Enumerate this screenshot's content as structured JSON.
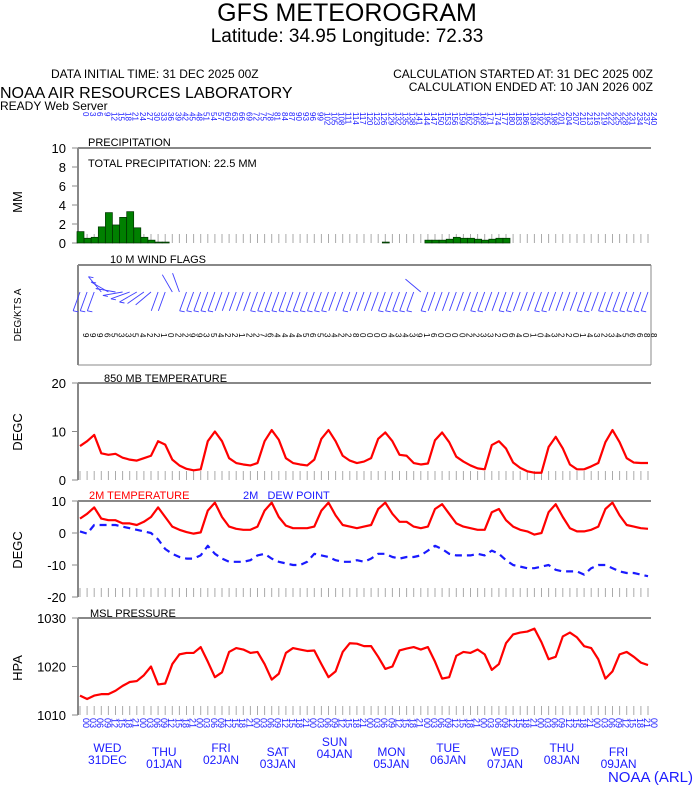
{
  "header": {
    "title": "GFS METEOROGRAM",
    "location": "Latitude: 34.95 Longitude:  72.33",
    "initial_time": "DATA INITIAL TIME: 31 DEC 2025 00Z",
    "calc_started": "CALCULATION STARTED AT: 31 DEC 2025 00Z",
    "calc_ended": "CALCULATION ENDED AT: 10 JAN 2026 00Z",
    "org": "NOAA AIR RESOURCES LABORATORY",
    "server": "READY Web Server",
    "footer": "NOAA (ARL)"
  },
  "colors": {
    "temperature": "#ff0000",
    "dew_point": "#1a1aff",
    "precip": "#008000",
    "axis_labels": "#1a1aff"
  },
  "forecast_hours": [
    0,
    3,
    6,
    9,
    12,
    15,
    18,
    21,
    24,
    27,
    30,
    33,
    36,
    39,
    42,
    45,
    48,
    51,
    54,
    57,
    60,
    63,
    66,
    69,
    72,
    75,
    78,
    81,
    84,
    87,
    90,
    93,
    96,
    99,
    102,
    105,
    108,
    111,
    114,
    117,
    120,
    123,
    126,
    129,
    132,
    135,
    138,
    141,
    144,
    147,
    150,
    153,
    156,
    159,
    162,
    165,
    168,
    171,
    174,
    177,
    180,
    183,
    186,
    189,
    192,
    195,
    198,
    201,
    204,
    207,
    210,
    213,
    216,
    219,
    222,
    225,
    228,
    231,
    234,
    237,
    240
  ],
  "utc_hours": [
    "00",
    "03",
    "06",
    "09",
    "12",
    "15",
    "18",
    "21"
  ],
  "days": [
    {
      "dow": "WED",
      "date": "31DEC"
    },
    {
      "dow": "THU",
      "date": "01JAN"
    },
    {
      "dow": "FRI",
      "date": "02JAN"
    },
    {
      "dow": "SAT",
      "date": "03JAN"
    },
    {
      "dow": "SUN",
      "date": "04JAN"
    },
    {
      "dow": "MON",
      "date": "05JAN"
    },
    {
      "dow": "TUE",
      "date": "06JAN"
    },
    {
      "dow": "WED",
      "date": "07JAN"
    },
    {
      "dow": "THU",
      "date": "08JAN"
    },
    {
      "dow": "FRI",
      "date": "09JAN"
    }
  ],
  "chart_data": [
    {
      "type": "bar",
      "title": "PRECIPITATION",
      "annotation": "TOTAL PRECIPITATION:  22.5 MM",
      "ylabel": "MM",
      "ylim": [
        0,
        10
      ],
      "yticks": [
        0,
        2,
        4,
        6,
        8,
        10
      ],
      "x": "forecast_hours",
      "values": [
        1.2,
        0.5,
        0.6,
        1.7,
        3.2,
        1.9,
        2.7,
        3.3,
        1.6,
        0.6,
        0.3,
        0.1,
        0.1,
        0,
        0,
        0,
        0,
        0,
        0,
        0,
        0,
        0,
        0,
        0,
        0,
        0,
        0,
        0,
        0,
        0,
        0,
        0,
        0,
        0,
        0,
        0,
        0,
        0,
        0,
        0,
        0,
        0,
        0,
        0.1,
        0,
        0,
        0,
        0,
        0,
        0.3,
        0.3,
        0.3,
        0.4,
        0.6,
        0.5,
        0.5,
        0.4,
        0.3,
        0.4,
        0.5,
        0.5,
        0,
        0,
        0,
        0,
        0,
        0,
        0,
        0,
        0,
        0,
        0,
        0,
        0,
        0,
        0,
        0,
        0,
        0,
        0,
        0
      ]
    },
    {
      "type": "wind_barbs",
      "title": "10 M  WIND FLAGS",
      "ylabel": "DEG/KTS  A",
      "x": "forecast_hours",
      "direction_deg": [
        200,
        200,
        200,
        320,
        300,
        280,
        260,
        250,
        240,
        235,
        230,
        200,
        200,
        330,
        340,
        200,
        200,
        200,
        200,
        200,
        200,
        200,
        200,
        200,
        200,
        200,
        200,
        200,
        200,
        200,
        200,
        200,
        200,
        200,
        200,
        200,
        200,
        200,
        200,
        200,
        200,
        200,
        200,
        200,
        200,
        200,
        200,
        200,
        310,
        200,
        200,
        200,
        200,
        200,
        200,
        200,
        200,
        200,
        200,
        200,
        200,
        200,
        200,
        200,
        200,
        200,
        200,
        200,
        200,
        200,
        200,
        200,
        200,
        200,
        200,
        200,
        200,
        200,
        200,
        200,
        200
      ],
      "speed_kts": [
        9,
        9,
        9,
        6,
        5,
        3,
        3,
        5,
        4,
        2,
        2,
        1,
        0,
        2,
        2,
        9,
        9,
        3,
        5,
        4,
        2,
        2,
        1,
        2,
        2,
        7,
        6,
        4,
        4,
        4,
        4,
        5,
        6,
        5,
        3,
        4,
        2,
        2,
        8,
        0,
        0,
        0,
        0,
        4,
        3,
        4,
        3,
        9,
        1,
        6,
        0,
        0,
        0,
        0,
        2,
        2,
        3,
        3,
        2,
        0,
        6,
        4,
        0,
        1,
        0,
        4,
        3,
        2,
        2,
        0,
        1,
        4,
        3,
        2,
        3,
        4,
        5,
        6,
        6,
        8,
        8
      ]
    },
    {
      "type": "line",
      "title": "850 MB  TEMPERATURE",
      "ylabel": "DEGC",
      "ylim": [
        0,
        20
      ],
      "yticks": [
        0,
        10,
        20
      ],
      "x": "forecast_hours",
      "series": [
        {
          "values": [
            7,
            8,
            9.3,
            5.5,
            5.2,
            5.4,
            4.6,
            4.2,
            4,
            4.5,
            5,
            8,
            7.3,
            4.2,
            3,
            2.3,
            2,
            2.2,
            8,
            10,
            8,
            4.5,
            3.5,
            3.2,
            3,
            3.5,
            8,
            10.3,
            8.3,
            4.5,
            3.5,
            3.2,
            3,
            4.2,
            8.5,
            10.3,
            8,
            5,
            4,
            3.5,
            3.8,
            4.5,
            8.5,
            9.8,
            8,
            5.2,
            5,
            3.5,
            3.2,
            3.4,
            8.2,
            9.8,
            7.8,
            4.8,
            3.8,
            3,
            2.4,
            2.2,
            7.2,
            8,
            6.5,
            3.6,
            2.5,
            1.8,
            1.5,
            1.5,
            6.8,
            8.9,
            6.5,
            3.2,
            2.2,
            2.2,
            2.8,
            3.5,
            7.8,
            10.3,
            7.8,
            4.5,
            3.6,
            3.5,
            3.5
          ],
          "color": "#ff0000"
        }
      ]
    },
    {
      "type": "line",
      "ylabel": "DEGC",
      "ylim": [
        -20,
        10
      ],
      "yticks": [
        -20,
        -10,
        0,
        10
      ],
      "x": "forecast_hours",
      "series": [
        {
          "name": "2M TEMPERATURE",
          "color": "#ff0000",
          "style": "solid",
          "values": [
            4.5,
            6,
            8,
            4.5,
            4,
            4,
            3,
            3,
            2.5,
            3.5,
            5,
            8,
            5,
            2,
            1,
            0.3,
            -0.2,
            0.2,
            7,
            9.5,
            5,
            2,
            1.3,
            1,
            1,
            2,
            7,
            9.5,
            5,
            2.3,
            1.5,
            1.5,
            1.5,
            2,
            7,
            9.5,
            5.5,
            2.5,
            2,
            1.5,
            2,
            2.5,
            7.5,
            9.5,
            6,
            3.5,
            3.5,
            2,
            1.5,
            2,
            7.5,
            9,
            6,
            3,
            2,
            1.5,
            1,
            1,
            6.5,
            7.5,
            4,
            2,
            1,
            0.5,
            -0.5,
            0,
            6.5,
            9,
            5,
            1.5,
            0.5,
            0.5,
            1,
            2,
            7.5,
            9.5,
            5.5,
            2.5,
            2,
            1.5,
            1.3
          ]
        },
        {
          "name": "2M   DEW POINT",
          "color": "#1a1aff",
          "style": "dashed",
          "values": [
            0.5,
            -0.2,
            2.5,
            2.5,
            2.5,
            2.5,
            2,
            1.5,
            1,
            0.5,
            0,
            -2,
            -5,
            -6.5,
            -7.5,
            -8,
            -8,
            -7,
            -4,
            -6.5,
            -8,
            -9,
            -9,
            -9,
            -8.5,
            -7,
            -6.5,
            -8,
            -9,
            -9.5,
            -10,
            -10,
            -9,
            -6.5,
            -7,
            -7.5,
            -8.5,
            -9,
            -9,
            -8.5,
            -9,
            -8,
            -6.5,
            -6.5,
            -7.5,
            -8,
            -7.5,
            -7.5,
            -7,
            -5.5,
            -4,
            -5,
            -6.5,
            -7,
            -7,
            -7,
            -6.5,
            -7,
            -5.5,
            -6.5,
            -8.5,
            -10,
            -10.5,
            -11,
            -11,
            -10.5,
            -10,
            -11.5,
            -12,
            -12,
            -12,
            -13,
            -11,
            -10,
            -10,
            -11,
            -12,
            -12.5,
            -12.5,
            -13,
            -13.5
          ]
        }
      ]
    },
    {
      "type": "line",
      "title": "MSL PRESSURE",
      "ylabel": "HPA",
      "ylim": [
        1010,
        1030
      ],
      "yticks": [
        1010,
        1020,
        1030
      ],
      "x": "forecast_hours",
      "series": [
        {
          "color": "#ff0000",
          "values": [
            1014,
            1013.3,
            1014,
            1014.3,
            1014.3,
            1015,
            1016,
            1016.8,
            1017,
            1018.2,
            1020,
            1016.3,
            1016.5,
            1020.5,
            1022.5,
            1022.8,
            1022.8,
            1024,
            1021,
            1017.8,
            1018.8,
            1023,
            1023.8,
            1023.5,
            1022.8,
            1023,
            1020.5,
            1017.3,
            1018.5,
            1022.8,
            1023.8,
            1023.5,
            1023.2,
            1023.3,
            1020.5,
            1017.8,
            1019,
            1023,
            1024.8,
            1024.7,
            1024.2,
            1024.2,
            1022,
            1019.5,
            1020,
            1023.3,
            1023.7,
            1024,
            1023.5,
            1024,
            1021,
            1017.5,
            1017.8,
            1022.2,
            1023,
            1022.8,
            1023.5,
            1022.5,
            1019.3,
            1020.5,
            1024.8,
            1026.6,
            1027,
            1027.2,
            1027.8,
            1025,
            1021.5,
            1022,
            1026.2,
            1027,
            1026,
            1024.2,
            1023.8,
            1021.5,
            1017.5,
            1019,
            1022.5,
            1023,
            1022,
            1020.8,
            1020.3
          ]
        }
      ]
    }
  ]
}
